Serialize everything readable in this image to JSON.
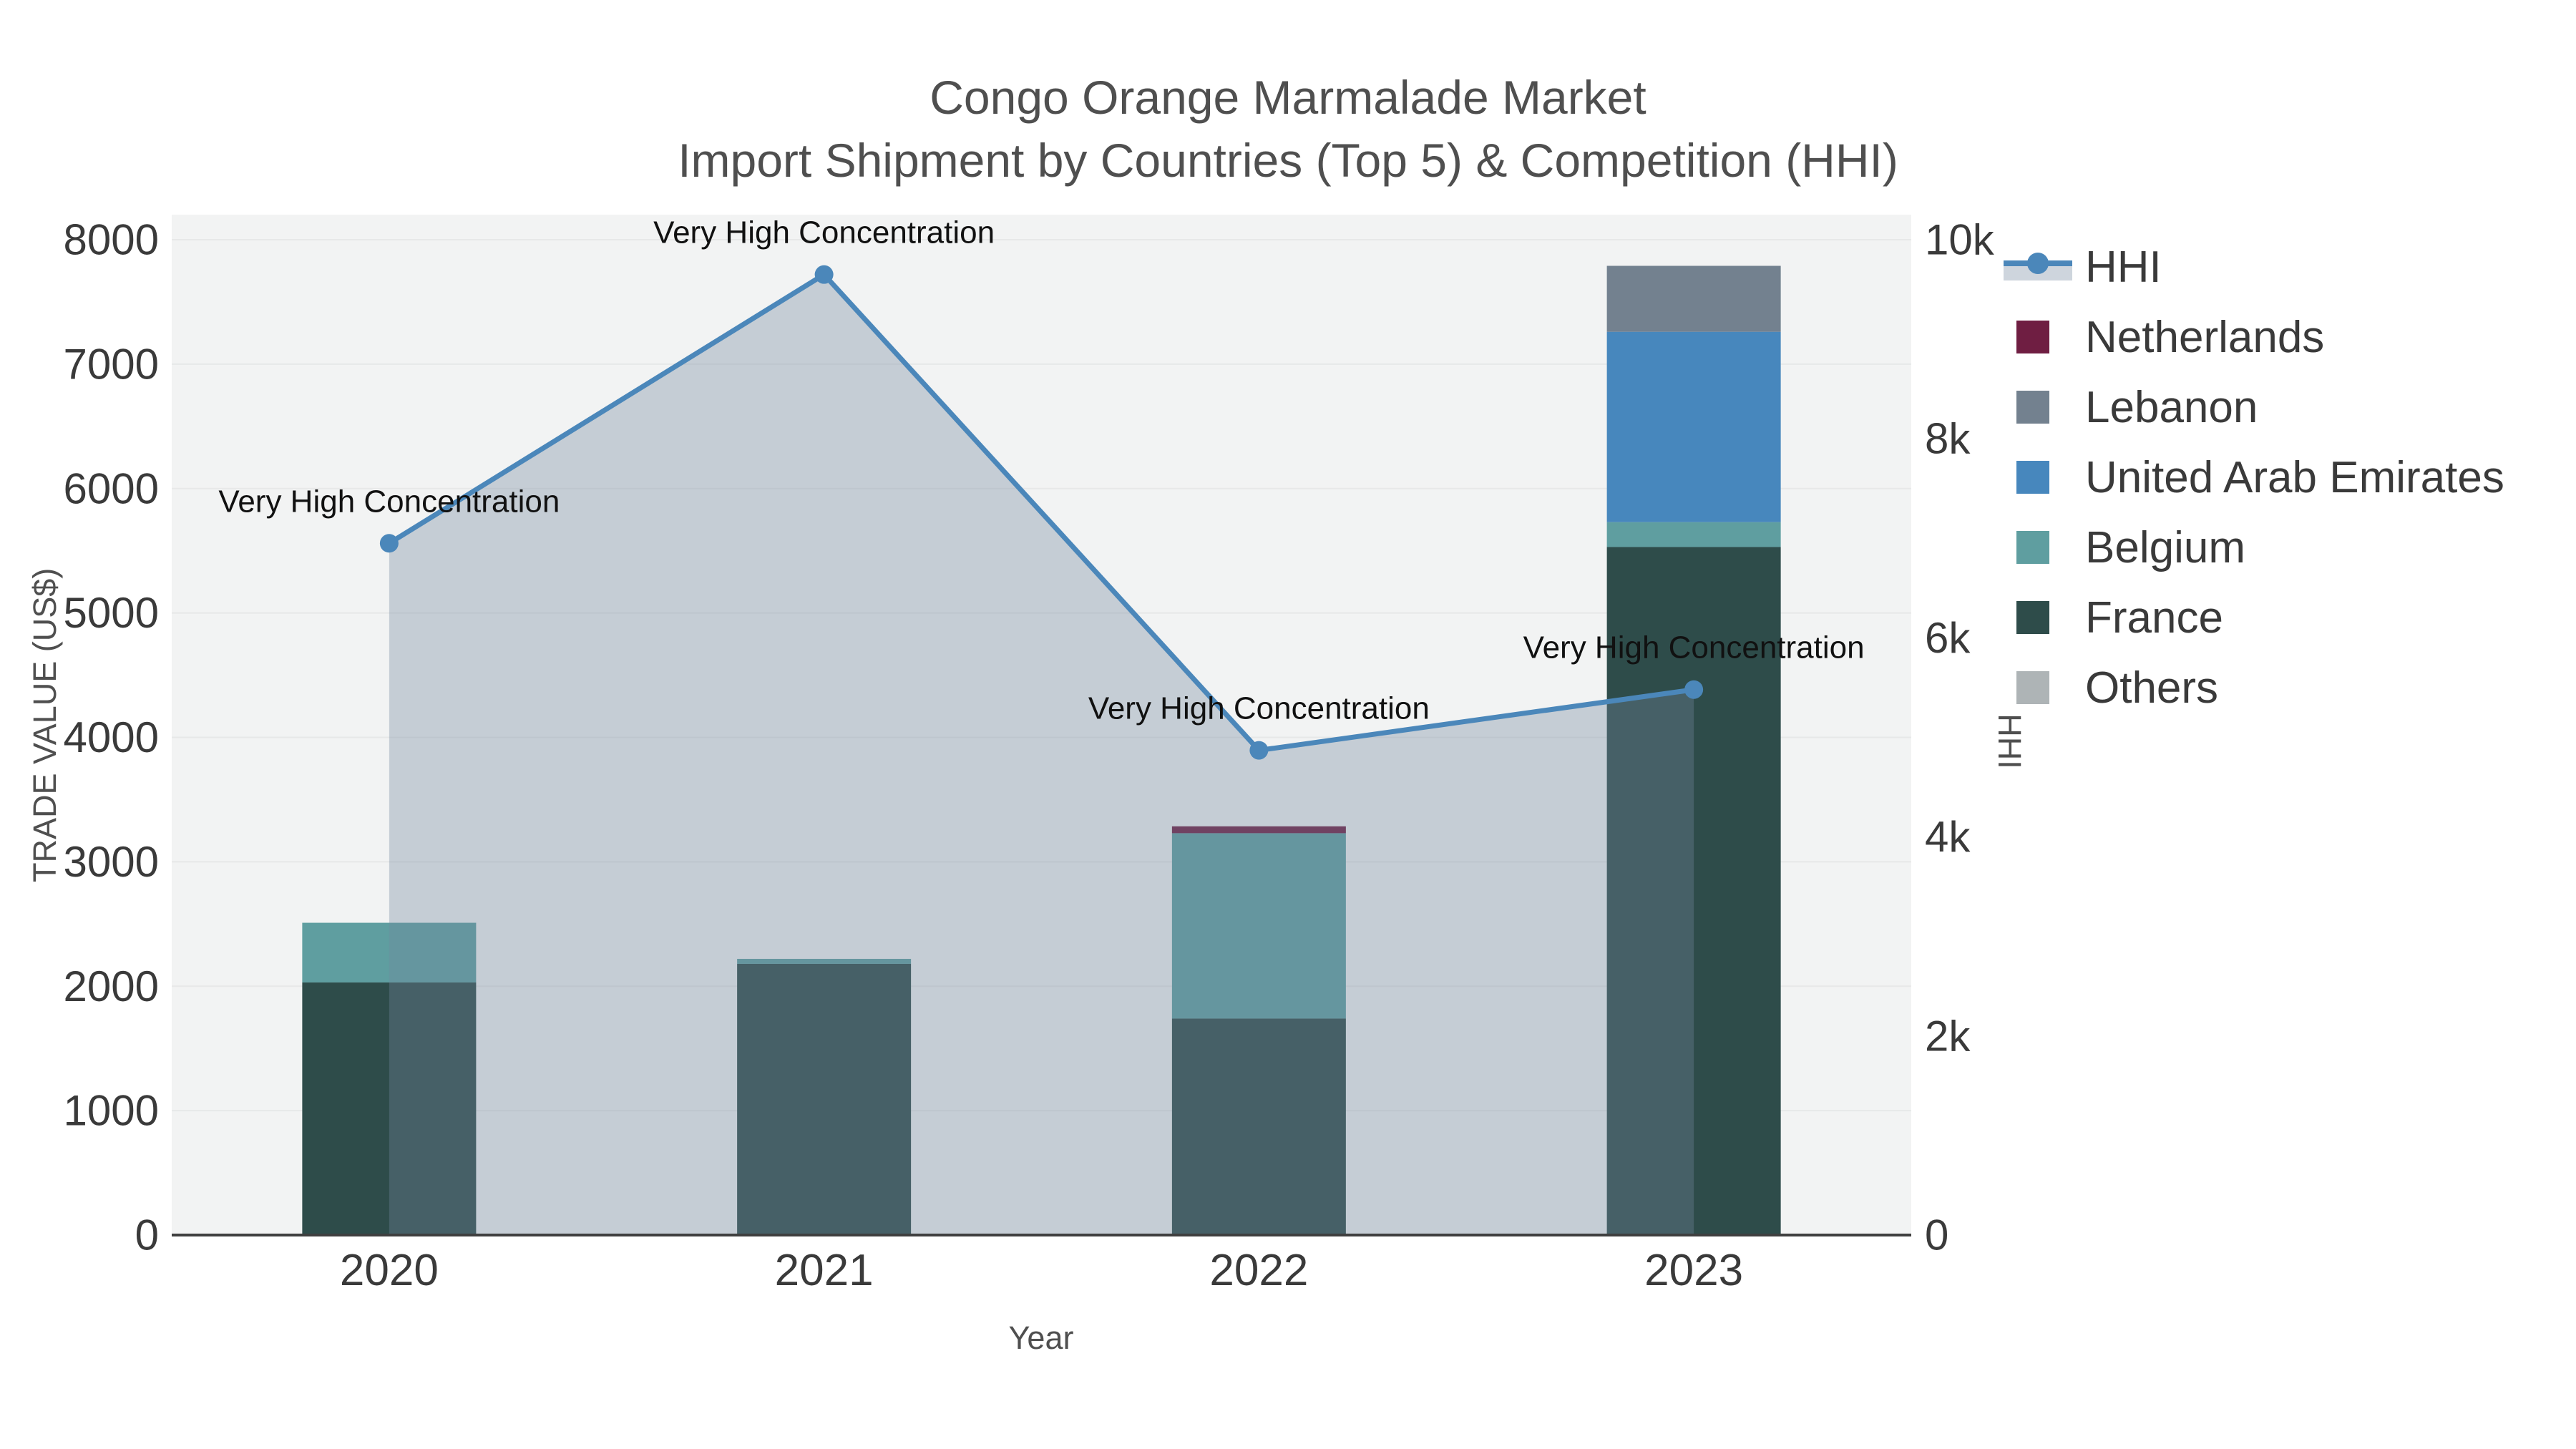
{
  "title": {
    "line1": "Congo Orange Marmalade Market",
    "line2": "Import Shipment by Countries (Top 5) & Competition (HHI)"
  },
  "legend": {
    "items": [
      {
        "label": "HHI",
        "type": "line",
        "color": "#4b87ba"
      },
      {
        "label": "Netherlands",
        "type": "square",
        "color": "#6f1e42"
      },
      {
        "label": "Lebanon",
        "type": "square",
        "color": "#73818f"
      },
      {
        "label": "United Arab Emirates",
        "type": "square",
        "color": "#4787bd"
      },
      {
        "label": "Belgium",
        "type": "square",
        "color": "#5f9ea0"
      },
      {
        "label": "France",
        "type": "square",
        "color": "#2e4c4a"
      },
      {
        "label": "Others",
        "type": "square",
        "color": "#aeb4b6"
      }
    ]
  },
  "chart_data": {
    "type": "bar+line-dual-axis",
    "categories": [
      "2020",
      "2021",
      "2022",
      "2023"
    ],
    "bar_series": [
      {
        "name": "Others",
        "color": "#aeb4b6",
        "values": [
          0,
          0,
          0,
          0
        ]
      },
      {
        "name": "France",
        "color": "#2e4c4a",
        "values": [
          2030,
          2180,
          1740,
          5530
        ]
      },
      {
        "name": "Belgium",
        "color": "#5f9ea0",
        "values": [
          480,
          40,
          1490,
          200
        ]
      },
      {
        "name": "United Arab Emirates",
        "color": "#4787bd",
        "values": [
          0,
          0,
          0,
          1530
        ]
      },
      {
        "name": "Lebanon",
        "color": "#73818f",
        "values": [
          0,
          0,
          0,
          530
        ]
      },
      {
        "name": "Netherlands",
        "color": "#6f1e42",
        "values": [
          0,
          0,
          55,
          0
        ]
      }
    ],
    "line_series": {
      "name": "HHI",
      "axis": "right",
      "color": "#4b87ba",
      "fill": "rgba(116,134,158,0.35)",
      "values": [
        6950,
        9650,
        4870,
        5480
      ]
    },
    "annotations": [
      {
        "text": "Very High Concentration",
        "category_index": 0
      },
      {
        "text": "Very High Concentration",
        "category_index": 1
      },
      {
        "text": "Very High Concentration",
        "category_index": 2
      },
      {
        "text": "Very High Concentration",
        "category_index": 3
      }
    ],
    "x_axis": {
      "title": "Year"
    },
    "y_left": {
      "title": "TRADE VALUE (US$)",
      "min": 0,
      "max": 8000,
      "ticks": [
        {
          "v": 0,
          "label": "0"
        },
        {
          "v": 1000,
          "label": "1000"
        },
        {
          "v": 2000,
          "label": "2000"
        },
        {
          "v": 3000,
          "label": "3000"
        },
        {
          "v": 4000,
          "label": "4000"
        },
        {
          "v": 5000,
          "label": "5000"
        },
        {
          "v": 6000,
          "label": "6000"
        },
        {
          "v": 7000,
          "label": "7000"
        },
        {
          "v": 8000,
          "label": "8000"
        }
      ]
    },
    "y_right": {
      "title": "HHI",
      "min": 0,
      "max": 10000,
      "ticks": [
        {
          "v": 0,
          "label": "0"
        },
        {
          "v": 2000,
          "label": "2k"
        },
        {
          "v": 4000,
          "label": "4k"
        },
        {
          "v": 6000,
          "label": "6k"
        },
        {
          "v": 8000,
          "label": "8k"
        },
        {
          "v": 10000,
          "label": "10k"
        }
      ]
    },
    "style": {
      "plot_bg": "#f2f3f3",
      "grid_color": "#e7e8e8",
      "axis_line_color": "#3f3f3f",
      "tick_color": "#3a3a3a",
      "annotation_color": "#111111"
    }
  }
}
